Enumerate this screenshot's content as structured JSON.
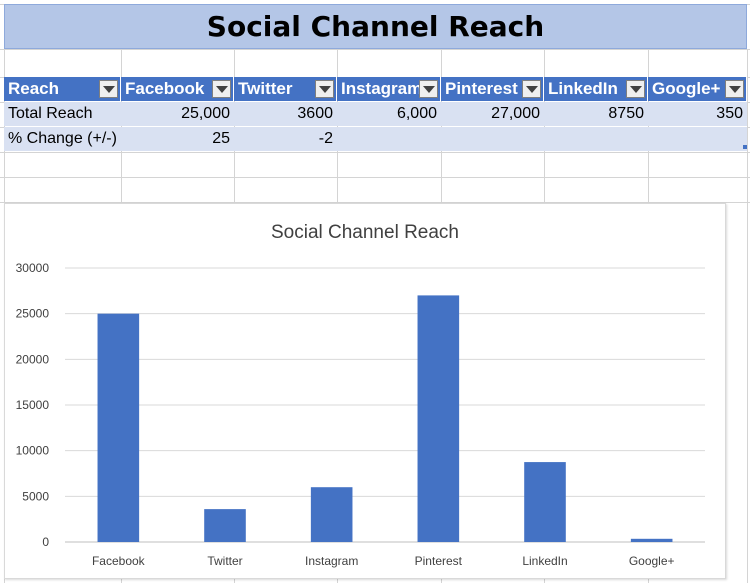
{
  "sheet_title": "Social Channel Reach",
  "table": {
    "headers": [
      "Reach",
      "Facebook",
      "Twitter",
      "Instagram",
      "Pinterest",
      "LinkedIn",
      "Google+"
    ],
    "rows": [
      {
        "label": "Total Reach",
        "values": [
          "25,000",
          "3600",
          "6,000",
          "27,000",
          "8750",
          "350"
        ]
      },
      {
        "label": "% Change (+/-)",
        "values": [
          "25",
          "-2",
          "",
          "",
          "",
          ""
        ]
      }
    ]
  },
  "colors": {
    "header_fill": "#4472c4",
    "title_fill": "#b4c6e7",
    "row_fill": "#d9e1f2",
    "bar_fill": "#4472c4"
  },
  "chart_data": {
    "type": "bar",
    "title": "Social Channel Reach",
    "categories": [
      "Facebook",
      "Twitter",
      "Instagram",
      "Pinterest",
      "LinkedIn",
      "Google+"
    ],
    "values": [
      25000,
      3600,
      6000,
      27000,
      8750,
      350
    ],
    "ylim": [
      0,
      30000
    ],
    "yticks": [
      0,
      5000,
      10000,
      15000,
      20000,
      25000,
      30000
    ],
    "grid": true,
    "legend": "none"
  }
}
